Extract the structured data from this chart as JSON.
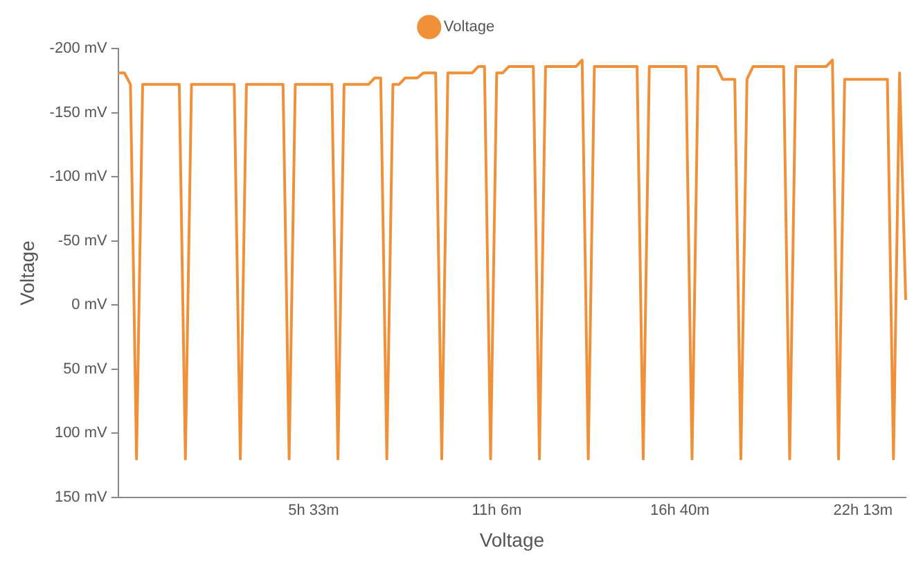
{
  "chart_data": {
    "type": "line",
    "xlabel": "Voltage",
    "ylabel": "Voltage",
    "legend": "top",
    "grid": false,
    "marker": "none",
    "line_style": "solid",
    "categories": [
      null,
      null,
      null,
      null,
      null,
      null,
      null,
      null,
      null,
      null,
      null,
      null,
      null,
      null,
      null,
      null,
      null,
      null,
      null,
      null,
      null,
      null,
      null,
      null,
      null,
      null,
      null,
      null,
      null,
      null,
      null,
      null,
      "5h 33m",
      null,
      null,
      null,
      null,
      null,
      null,
      null,
      null,
      null,
      null,
      null,
      null,
      null,
      null,
      null,
      null,
      null,
      null,
      null,
      null,
      null,
      null,
      null,
      null,
      null,
      null,
      null,
      null,
      null,
      "11h 6m",
      null,
      null,
      null,
      null,
      null,
      null,
      null,
      null,
      null,
      null,
      null,
      null,
      null,
      null,
      null,
      null,
      null,
      null,
      null,
      null,
      null,
      null,
      null,
      null,
      null,
      null,
      null,
      null,
      null,
      "16h 40m",
      null,
      null,
      null,
      null,
      null,
      null,
      null,
      null,
      null,
      null,
      null,
      null,
      null,
      null,
      null,
      null,
      null,
      null,
      null,
      null,
      null,
      null,
      null,
      null,
      null,
      null,
      null,
      null,
      null,
      "22h 13m",
      null,
      null,
      null,
      null,
      null,
      null,
      null
    ],
    "ylim": [
      150,
      -200
    ],
    "yticks": [
      {
        "value": -200,
        "label": "-200 mV"
      },
      {
        "value": -150,
        "label": "-150 mV"
      },
      {
        "value": -100,
        "label": "-100 mV"
      },
      {
        "value": -50,
        "label": "-50 mV"
      },
      {
        "value": 0,
        "label": "0 mV"
      },
      {
        "value": 50,
        "label": "50 mV"
      },
      {
        "value": 100,
        "label": "100 mV"
      },
      {
        "value": 150,
        "label": "150 mV"
      }
    ],
    "series": [
      {
        "name": "Voltage",
        "color": "#f0913a",
        "values": [
          -181,
          -181,
          -172,
          120,
          -172,
          -172,
          -172,
          -172,
          -172,
          -172,
          -172,
          120,
          -172,
          -172,
          -172,
          -172,
          -172,
          -172,
          -172,
          -172,
          120,
          -172,
          -172,
          -172,
          -172,
          -172,
          -172,
          -172,
          120,
          -172,
          -172,
          -172,
          -172,
          -172,
          -172,
          -172,
          120,
          -172,
          -172,
          -172,
          -172,
          -172,
          -177,
          -177,
          120,
          -172,
          -172,
          -177,
          -177,
          -177,
          -181,
          -181,
          -181,
          120,
          -181,
          -181,
          -181,
          -181,
          -181,
          -186,
          -186,
          120,
          -181,
          -181,
          -186,
          -186,
          -186,
          -186,
          -186,
          120,
          -186,
          -186,
          -186,
          -186,
          -186,
          -186,
          -191,
          120,
          -186,
          -186,
          -186,
          -186,
          -186,
          -186,
          -186,
          -186,
          120,
          -186,
          -186,
          -186,
          -186,
          -186,
          -186,
          -186,
          120,
          -186,
          -186,
          -186,
          -186,
          -176,
          -176,
          -176,
          120,
          -176,
          -186,
          -186,
          -186,
          -186,
          -186,
          -186,
          120,
          -186,
          -186,
          -186,
          -186,
          -186,
          -186,
          -191,
          120,
          -176,
          -176,
          -176,
          -176,
          -176,
          -176,
          -176,
          -176,
          120,
          -181,
          -4
        ]
      }
    ]
  }
}
